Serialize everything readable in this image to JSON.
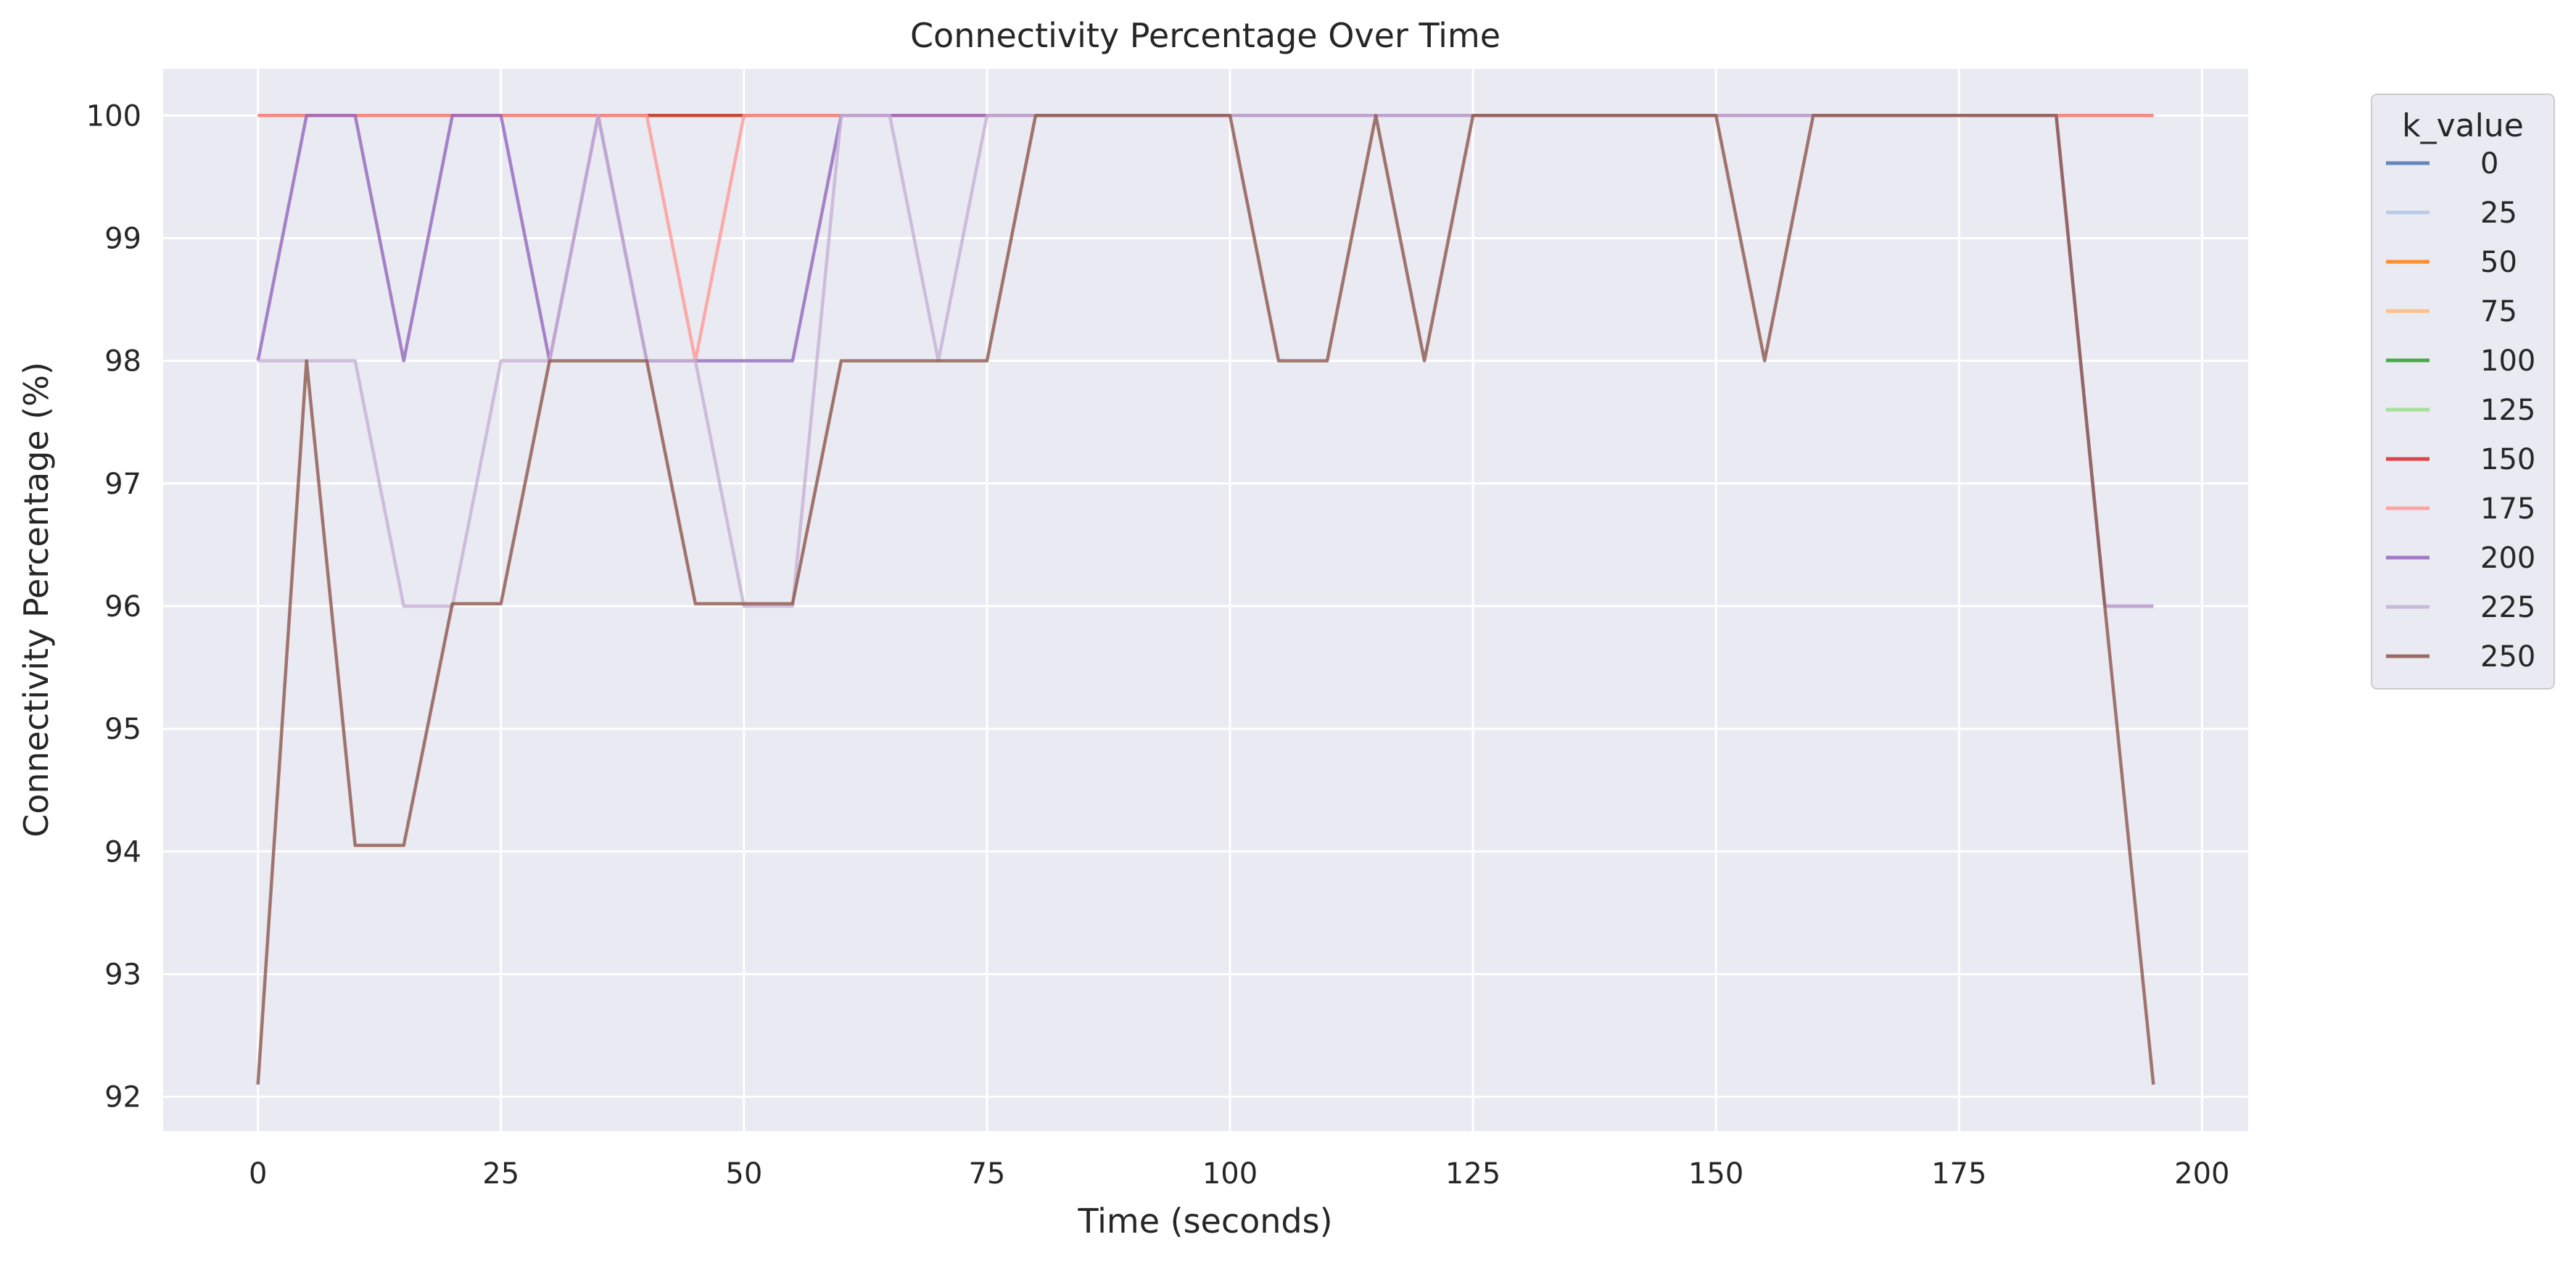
{
  "chart_data": {
    "type": "line",
    "title": "Connectivity Percentage Over Time",
    "xlabel": "Time (seconds)",
    "ylabel": "Connectivity Percentage (%)",
    "xlim": [
      -9.75,
      204.75
    ],
    "ylim": [
      91.72,
      100.38
    ],
    "xticks": [
      0,
      25,
      50,
      75,
      100,
      125,
      150,
      175,
      200
    ],
    "yticks": [
      92,
      93,
      94,
      95,
      96,
      97,
      98,
      99,
      100
    ],
    "grid": true,
    "background": "#eaeaf2",
    "legend": {
      "title": "k_value",
      "position": "outside-top-right"
    },
    "x": [
      0,
      5,
      10,
      15,
      20,
      25,
      30,
      35,
      40,
      45,
      50,
      55,
      60,
      65,
      70,
      75,
      80,
      85,
      90,
      95,
      100,
      105,
      110,
      115,
      120,
      125,
      130,
      135,
      140,
      145,
      150,
      155,
      160,
      165,
      170,
      175,
      180,
      185,
      190,
      195
    ],
    "series": [
      {
        "name": "0",
        "color": "#4c72b0",
        "values": [
          100,
          100,
          100,
          100,
          100,
          100,
          100,
          100,
          100,
          100,
          100,
          100,
          100,
          100,
          100,
          100,
          100,
          100,
          100,
          100,
          100,
          100,
          100,
          100,
          100,
          100,
          100,
          100,
          100,
          100,
          100,
          100,
          100,
          100,
          100,
          100,
          100,
          100,
          100,
          100
        ]
      },
      {
        "name": "25",
        "color": "#aec7e8",
        "values": [
          100,
          100,
          100,
          100,
          100,
          100,
          100,
          100,
          100,
          100,
          100,
          100,
          100,
          100,
          100,
          100,
          100,
          100,
          100,
          100,
          100,
          100,
          100,
          100,
          100,
          100,
          100,
          100,
          100,
          100,
          100,
          100,
          100,
          100,
          100,
          100,
          100,
          100,
          100,
          100
        ]
      },
      {
        "name": "50",
        "color": "#ff7f0e",
        "values": [
          100,
          100,
          100,
          100,
          100,
          100,
          100,
          100,
          100,
          100,
          100,
          100,
          100,
          100,
          100,
          100,
          100,
          100,
          100,
          100,
          100,
          100,
          100,
          100,
          100,
          100,
          100,
          100,
          100,
          100,
          100,
          100,
          100,
          100,
          100,
          100,
          100,
          100,
          100,
          100
        ]
      },
      {
        "name": "75",
        "color": "#ffbb78",
        "values": [
          100,
          100,
          100,
          100,
          100,
          100,
          100,
          100,
          100,
          100,
          100,
          100,
          100,
          100,
          100,
          100,
          100,
          100,
          100,
          100,
          100,
          100,
          100,
          100,
          100,
          100,
          100,
          100,
          100,
          100,
          100,
          100,
          100,
          100,
          100,
          100,
          100,
          100,
          100,
          100
        ]
      },
      {
        "name": "100",
        "color": "#2ca02c",
        "values": [
          100,
          100,
          100,
          100,
          100,
          100,
          100,
          100,
          100,
          100,
          100,
          100,
          100,
          100,
          100,
          100,
          100,
          100,
          100,
          100,
          100,
          100,
          100,
          100,
          100,
          100,
          100,
          100,
          100,
          100,
          100,
          100,
          100,
          100,
          100,
          100,
          100,
          100,
          100,
          100
        ]
      },
      {
        "name": "125",
        "color": "#98df8a",
        "values": [
          100,
          100,
          100,
          100,
          100,
          100,
          100,
          100,
          100,
          100,
          100,
          100,
          100,
          100,
          100,
          100,
          100,
          100,
          100,
          100,
          100,
          100,
          100,
          100,
          100,
          100,
          100,
          100,
          100,
          100,
          100,
          100,
          100,
          100,
          100,
          100,
          100,
          100,
          100,
          100
        ]
      },
      {
        "name": "150",
        "color": "#d62728",
        "values": [
          100,
          100,
          100,
          100,
          100,
          100,
          100,
          100,
          100,
          100,
          100,
          100,
          100,
          100,
          100,
          100,
          100,
          100,
          100,
          100,
          100,
          100,
          100,
          100,
          100,
          100,
          100,
          100,
          100,
          100,
          100,
          100,
          100,
          100,
          100,
          100,
          100,
          100,
          100,
          100
        ]
      },
      {
        "name": "175",
        "color": "#ff9896",
        "values": [
          100,
          100,
          100,
          100,
          100,
          100,
          100,
          100,
          100,
          98,
          100,
          100,
          100,
          100,
          100,
          100,
          100,
          100,
          100,
          100,
          100,
          100,
          100,
          100,
          100,
          100,
          100,
          100,
          100,
          100,
          100,
          100,
          100,
          100,
          100,
          100,
          100,
          100,
          100,
          100
        ]
      },
      {
        "name": "200",
        "color": "#9467bd",
        "values": [
          98,
          100,
          100,
          98,
          100,
          100,
          98,
          100,
          98,
          98,
          98,
          98,
          100,
          100,
          100,
          100,
          100,
          100,
          100,
          100,
          100,
          100,
          100,
          100,
          100,
          100,
          100,
          100,
          100,
          100,
          100,
          100,
          100,
          100,
          100,
          100,
          100,
          100,
          96,
          96
        ]
      },
      {
        "name": "225",
        "color": "#c5b0d5",
        "values": [
          98,
          98,
          98,
          96,
          96,
          98,
          98,
          100,
          98,
          98,
          96,
          96,
          100,
          100,
          98,
          100,
          100,
          100,
          100,
          100,
          100,
          100,
          100,
          100,
          100,
          100,
          100,
          100,
          100,
          100,
          100,
          100,
          100,
          100,
          100,
          100,
          100,
          100,
          96,
          96
        ]
      },
      {
        "name": "250",
        "color": "#8c564b",
        "values": [
          92.1,
          98,
          94.05,
          94.05,
          96.02,
          96.02,
          98,
          98,
          98,
          96.02,
          96.02,
          96.02,
          98,
          98,
          98,
          98,
          100,
          100,
          100,
          100,
          100,
          98,
          98,
          100,
          98,
          100,
          100,
          100,
          100,
          100,
          100,
          98,
          100,
          100,
          100,
          100,
          100,
          100,
          96,
          92.1
        ]
      }
    ]
  }
}
